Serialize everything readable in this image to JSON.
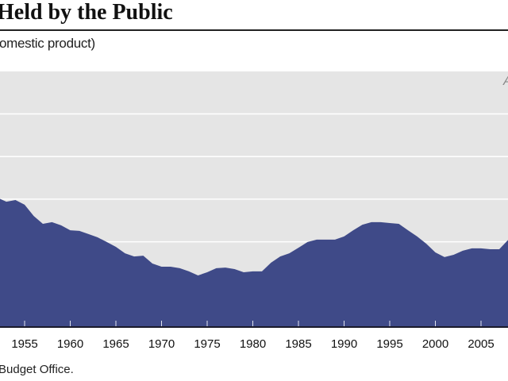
{
  "title": "Held by the Public",
  "subtitle": "omestic product)",
  "source": "Budget Office.",
  "chart_data": {
    "type": "area",
    "title": "Held by the Public",
    "subtitle": "omestic product)",
    "corner_label": "A",
    "x_tick_labels": [
      "1955",
      "1960",
      "1965",
      "1970",
      "1975",
      "1980",
      "1985",
      "1990",
      "1995",
      "2000",
      "2005"
    ],
    "x": [
      1952,
      1953,
      1954,
      1955,
      1956,
      1957,
      1958,
      1959,
      1960,
      1961,
      1962,
      1963,
      1964,
      1965,
      1966,
      1967,
      1968,
      1969,
      1970,
      1971,
      1972,
      1973,
      1974,
      1975,
      1976,
      1977,
      1978,
      1979,
      1980,
      1981,
      1982,
      1983,
      1984,
      1985,
      1986,
      1987,
      1988,
      1989,
      1990,
      1991,
      1992,
      1993,
      1994,
      1995,
      1996,
      1997,
      1998,
      1999,
      2000,
      2001,
      2002,
      2003,
      2004,
      2005,
      2006,
      2007,
      2008
    ],
    "values": [
      60.7,
      58.8,
      59.6,
      57.4,
      52.1,
      48.4,
      49.2,
      47.7,
      45.4,
      45.1,
      43.6,
      42.1,
      39.9,
      37.6,
      34.6,
      33.1,
      33.5,
      29.8,
      28.3,
      28.3,
      27.6,
      26.1,
      24.2,
      25.7,
      27.6,
      27.9,
      27.2,
      25.7,
      26.1,
      26.1,
      30.2,
      33.1,
      34.6,
      37.2,
      39.9,
      41.0,
      41.0,
      41.0,
      42.5,
      45.4,
      48.0,
      49.2,
      49.2,
      48.8,
      48.4,
      45.4,
      42.5,
      39.1,
      35.0,
      32.8,
      33.9,
      35.8,
      36.9,
      36.9,
      36.5,
      36.5,
      41.0
    ],
    "ylim": [
      0,
      120
    ],
    "xlim": [
      1952.3,
      2008
    ],
    "y_gridlines": [
      20,
      40,
      60,
      80,
      100
    ],
    "grid": true,
    "colors": {
      "fill": "#3f4a88",
      "background": "#e5e5e5",
      "grid": "#ffffff"
    }
  }
}
